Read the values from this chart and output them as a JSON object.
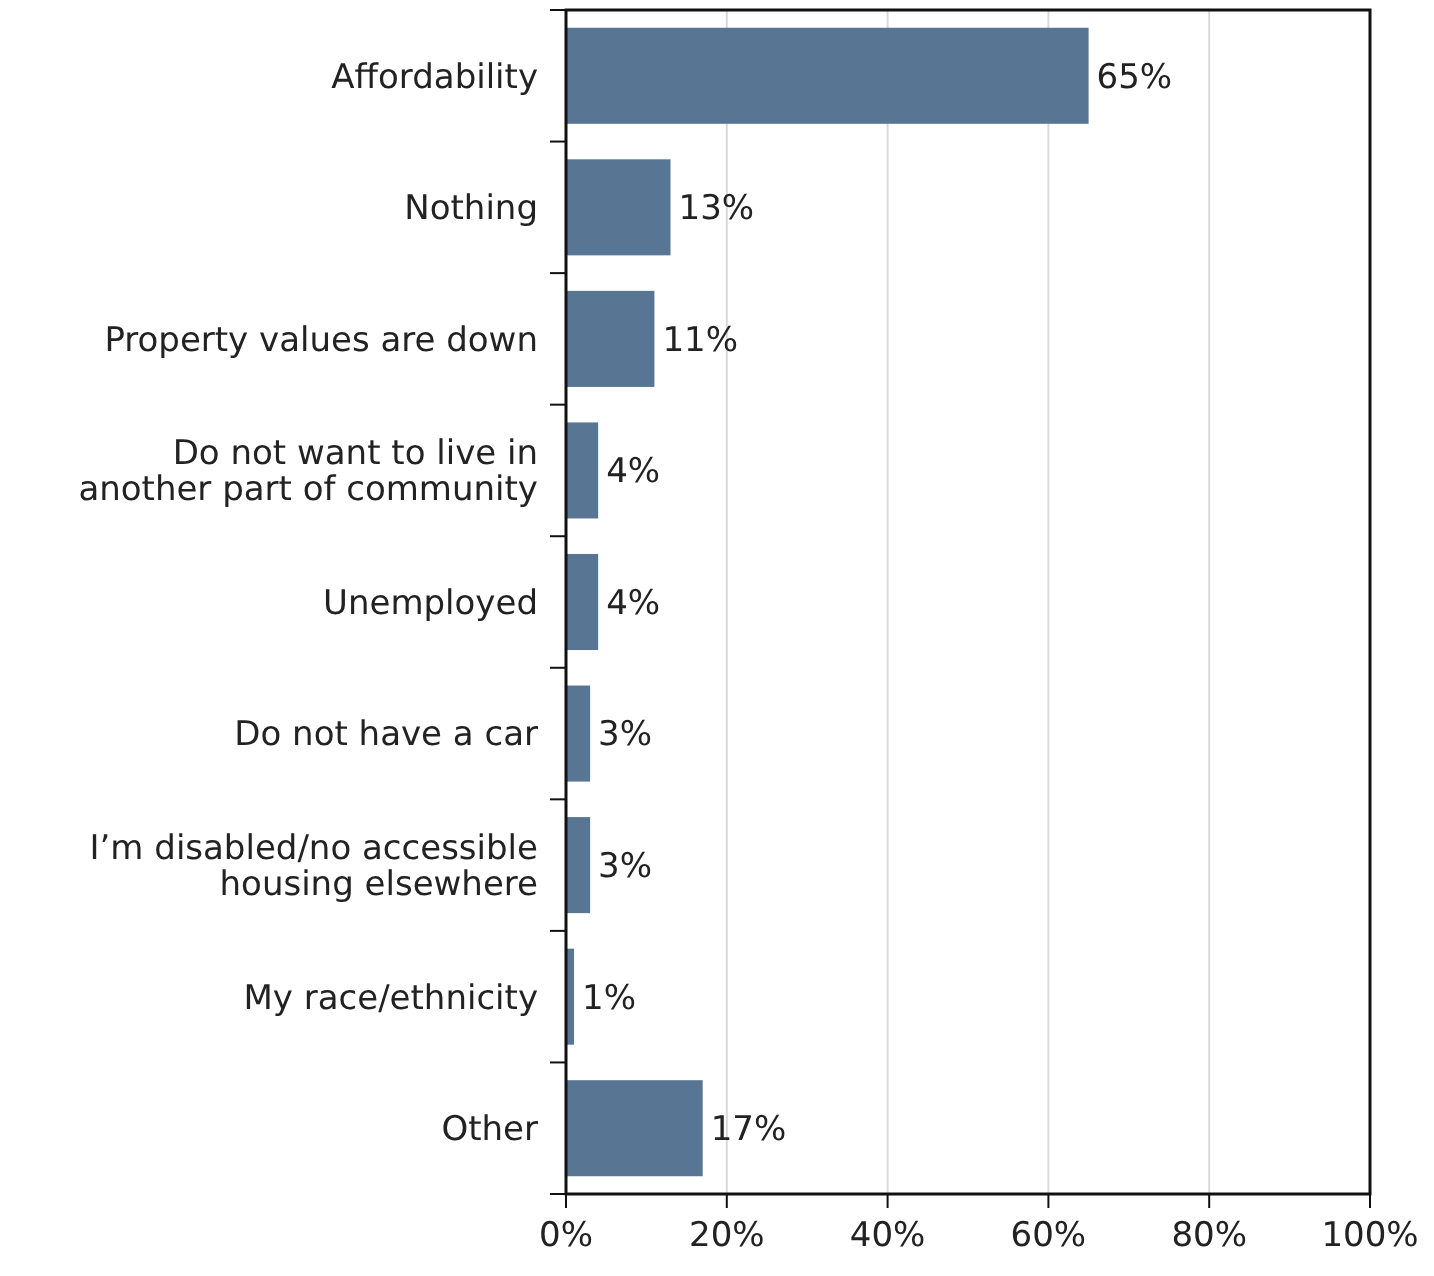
{
  "chart_data": {
    "type": "bar",
    "orientation": "horizontal",
    "categories": [
      "Affordability",
      "Nothing",
      "Property values are down",
      "Do not want to live in\nanother part of community",
      "Unemployed",
      "Do not have a car",
      "I’m disabled/no accessible\nhousing elsewhere",
      "My race/ethnicity",
      "Other"
    ],
    "values": [
      65,
      13,
      11,
      4,
      4,
      3,
      3,
      1,
      17
    ],
    "value_labels": [
      "65%",
      "13%",
      "11%",
      "4%",
      "4%",
      "3%",
      "3%",
      "1%",
      "17%"
    ],
    "color": "#587593",
    "xlim": [
      0,
      100
    ],
    "xticks": [
      {
        "value": 0,
        "label": "0%"
      },
      {
        "value": 20,
        "label": "20%"
      },
      {
        "value": 40,
        "label": "40%"
      },
      {
        "value": 60,
        "label": "60%"
      },
      {
        "value": 80,
        "label": "80%"
      },
      {
        "value": 100,
        "label": "100%"
      }
    ],
    "grid": "x"
  }
}
